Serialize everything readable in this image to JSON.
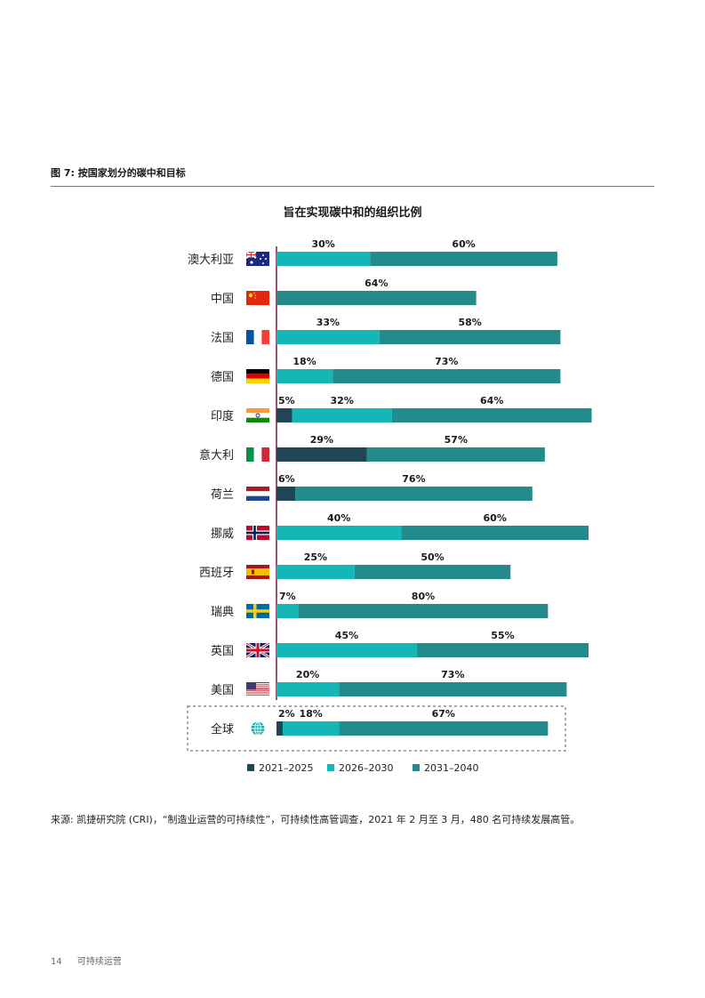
{
  "figure_title": "图 7: 按国家划分的碳中和目标",
  "chart_data": {
    "type": "bar",
    "orientation": "horizontal",
    "stacked": true,
    "title": "旨在实现碳中和的组织比例",
    "categories": [
      "澳大利亚",
      "中国",
      "法国",
      "德国",
      "印度",
      "意大利",
      "荷兰",
      "挪威",
      "西班牙",
      "瑞典",
      "英国",
      "美国",
      "全球"
    ],
    "flags": [
      "flag-australia-icon",
      "flag-china-icon",
      "flag-france-icon",
      "flag-germany-icon",
      "flag-india-icon",
      "flag-italy-icon",
      "flag-netherlands-icon",
      "flag-norway-icon",
      "flag-spain-icon",
      "flag-sweden-icon",
      "flag-uk-icon",
      "flag-usa-icon",
      "globe-icon"
    ],
    "series": [
      {
        "name": "2021–2025",
        "color": "#1f4654",
        "values": [
          0,
          0,
          0,
          0,
          5,
          29,
          6,
          0,
          0,
          0,
          0,
          0,
          2
        ]
      },
      {
        "name": "2026–2030",
        "color": "#14b7b5",
        "values": [
          30,
          0,
          33,
          18,
          32,
          0,
          0,
          40,
          25,
          7,
          45,
          20,
          18
        ]
      },
      {
        "name": "2031–2040",
        "color": "#248b8c",
        "values": [
          60,
          64,
          58,
          73,
          64,
          57,
          76,
          60,
          50,
          80,
          55,
          73,
          67
        ]
      }
    ],
    "highlighted_category": "全球",
    "legend_position": "bottom",
    "grid": false
  },
  "source_note": "来源: 凯捷研究院 (CRI)，“制造业运营的可持续性”，可持续性高管调查，2021 年 2 月至 3 月，480 名可持续发展高管。",
  "footer": {
    "page_number": "14",
    "section": "可持续运营"
  }
}
